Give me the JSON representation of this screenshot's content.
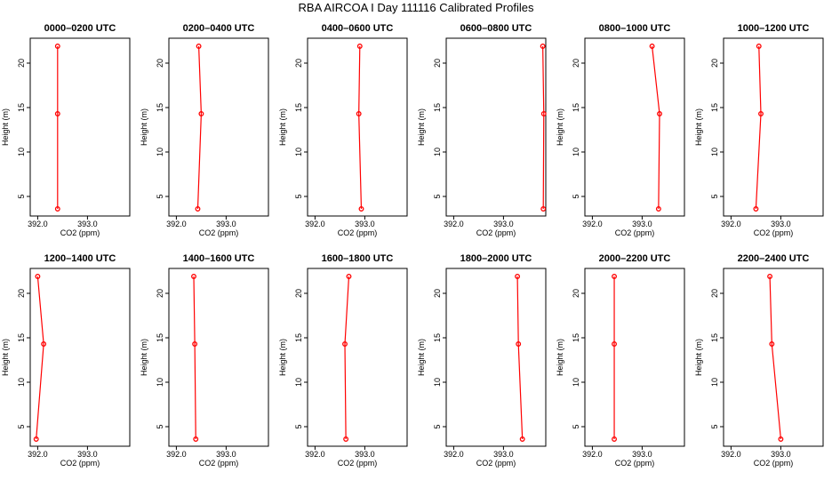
{
  "title": "RBA AIRCOA I  Day 111116  Calibrated Profiles",
  "colors": {
    "series": "#ff0000",
    "axis": "#000000"
  },
  "chart_data": {
    "type": "line",
    "layout": "2 rows x 6 columns of small multiples",
    "xlabel": "CO2 (ppm)",
    "ylabel": "Height (m)",
    "xlim": [
      391.85,
      393.85
    ],
    "ylim": [
      2.8,
      22.8
    ],
    "x_ticks": [
      392.0,
      393.0
    ],
    "x_tick_labels": [
      "392.0",
      "393.0"
    ],
    "y_ticks": [
      5,
      10,
      15,
      20
    ],
    "y_tick_labels": [
      "5",
      "10",
      "15",
      "20"
    ],
    "panels": [
      {
        "title": "0000–0200 UTC",
        "co2": [
          392.4,
          392.4,
          392.4
        ],
        "height": [
          21.9,
          14.3,
          3.6
        ]
      },
      {
        "title": "0200–0400 UTC",
        "co2": [
          392.45,
          392.5,
          392.43
        ],
        "height": [
          21.9,
          14.3,
          3.6
        ]
      },
      {
        "title": "0400–0600 UTC",
        "co2": [
          392.9,
          392.88,
          392.93
        ],
        "height": [
          21.9,
          14.3,
          3.6
        ]
      },
      {
        "title": "0600–0800 UTC",
        "co2": [
          393.79,
          393.81,
          393.8
        ],
        "height": [
          21.9,
          14.3,
          3.6
        ]
      },
      {
        "title": "0800–1000 UTC",
        "co2": [
          393.2,
          393.35,
          393.33
        ],
        "height": [
          21.9,
          14.3,
          3.6
        ]
      },
      {
        "title": "1000–1200 UTC",
        "co2": [
          392.56,
          392.6,
          392.5
        ],
        "height": [
          21.9,
          14.3,
          3.6
        ]
      },
      {
        "title": "1200–1400 UTC",
        "co2": [
          392.0,
          392.12,
          391.97
        ],
        "height": [
          21.9,
          14.3,
          3.6
        ]
      },
      {
        "title": "1400–1600 UTC",
        "co2": [
          392.35,
          392.37,
          392.39
        ],
        "height": [
          21.9,
          14.3,
          3.6
        ]
      },
      {
        "title": "1600–1800 UTC",
        "co2": [
          392.68,
          392.6,
          392.62
        ],
        "height": [
          21.9,
          14.3,
          3.6
        ]
      },
      {
        "title": "1800–2000 UTC",
        "co2": [
          393.28,
          393.3,
          393.38
        ],
        "height": [
          21.9,
          14.3,
          3.6
        ]
      },
      {
        "title": "2000–2200 UTC",
        "co2": [
          392.44,
          392.44,
          392.44
        ],
        "height": [
          21.9,
          14.3,
          3.6
        ]
      },
      {
        "title": "2200–2400 UTC",
        "co2": [
          392.78,
          392.82,
          393.0
        ],
        "height": [
          21.9,
          14.3,
          3.6
        ]
      }
    ]
  }
}
